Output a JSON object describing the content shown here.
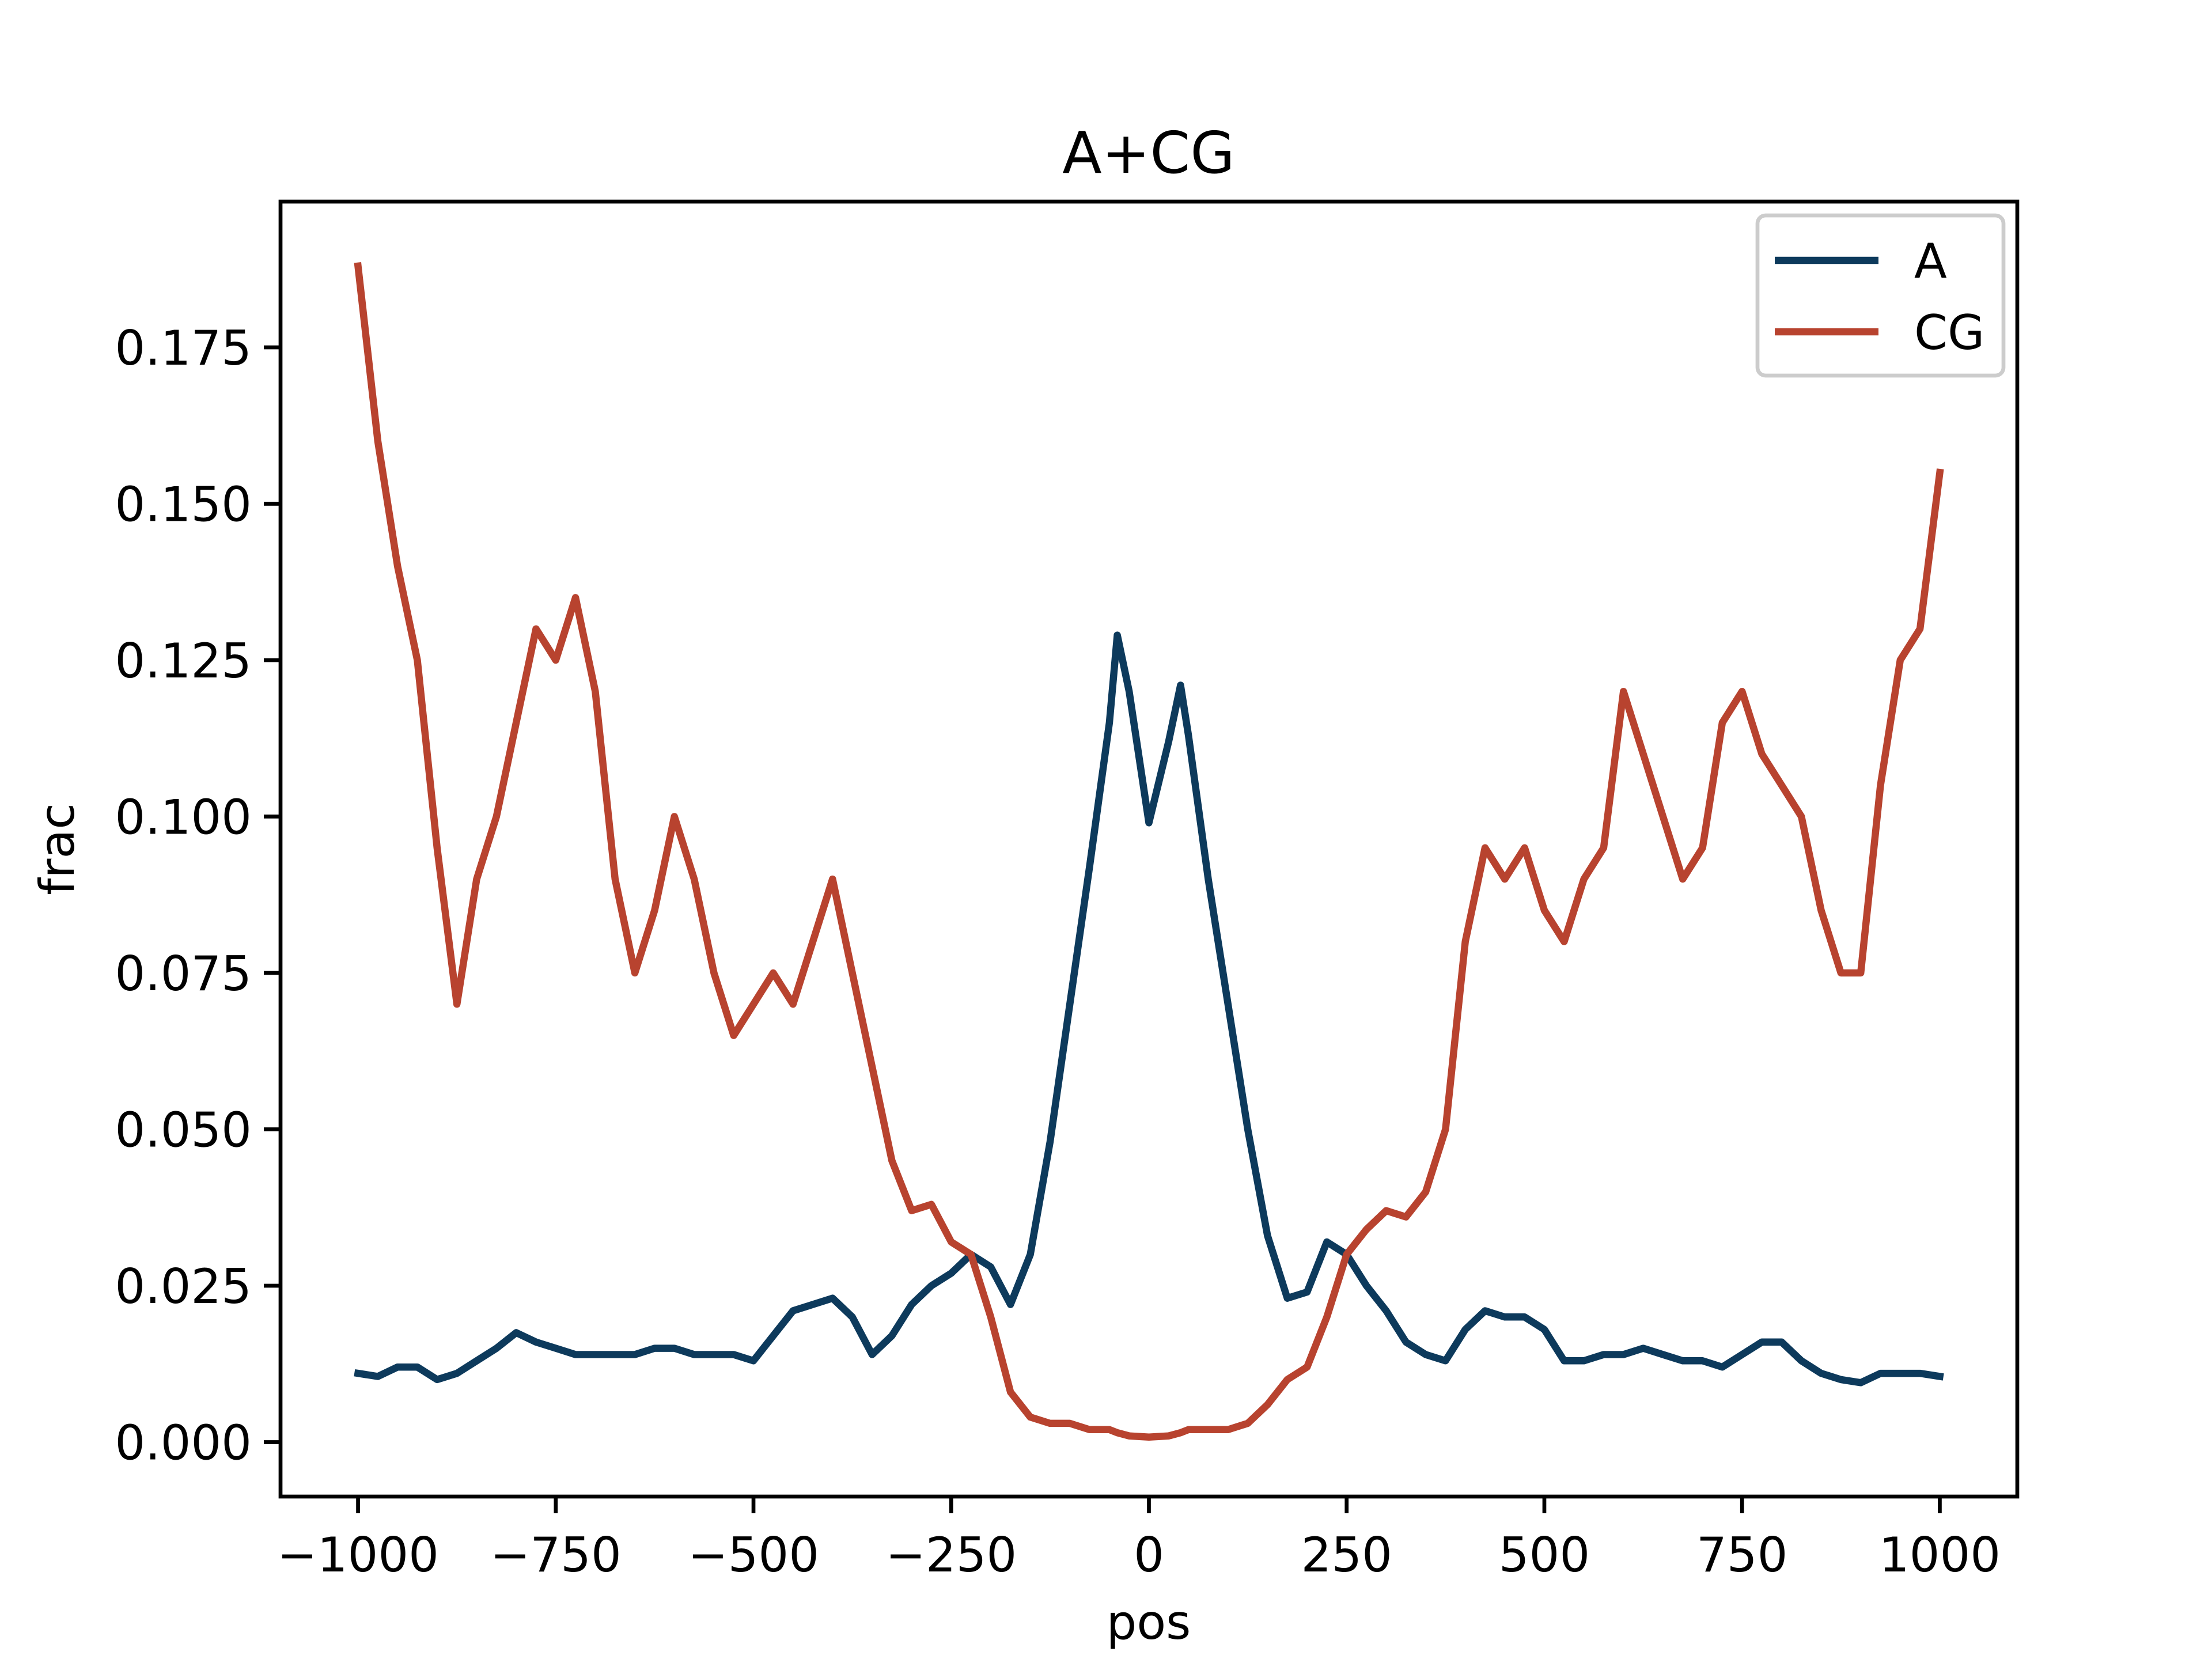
{
  "chart_data": {
    "type": "line",
    "title": "A+CG",
    "x_label": "pos",
    "y_label": "frac",
    "x": [
      -1000,
      -975,
      -950,
      -925,
      -900,
      -875,
      -850,
      -825,
      -800,
      -775,
      -750,
      -725,
      -700,
      -675,
      -650,
      -625,
      -600,
      -575,
      -550,
      -525,
      -500,
      -475,
      -450,
      -425,
      -400,
      -375,
      -350,
      -325,
      -300,
      -275,
      -250,
      -225,
      -200,
      -175,
      -150,
      -125,
      -100,
      -75,
      -50,
      -40,
      -25,
      0,
      25,
      40,
      50,
      75,
      100,
      125,
      150,
      175,
      200,
      225,
      250,
      275,
      300,
      325,
      350,
      375,
      400,
      425,
      450,
      475,
      500,
      525,
      550,
      575,
      600,
      625,
      650,
      675,
      700,
      725,
      750,
      775,
      800,
      825,
      850,
      875,
      900,
      925,
      950,
      975,
      1000
    ],
    "series": [
      {
        "name": "A",
        "color": "#0d3a5c",
        "values": [
          0.011,
          0.0105,
          0.012,
          0.012,
          0.01,
          0.011,
          0.013,
          0.015,
          0.0175,
          0.016,
          0.015,
          0.014,
          0.014,
          0.014,
          0.014,
          0.015,
          0.015,
          0.014,
          0.014,
          0.014,
          0.013,
          0.017,
          0.021,
          0.022,
          0.023,
          0.02,
          0.014,
          0.017,
          0.022,
          0.025,
          0.027,
          0.03,
          0.028,
          0.022,
          0.03,
          0.048,
          0.07,
          0.092,
          0.115,
          0.129,
          0.12,
          0.099,
          0.112,
          0.121,
          0.113,
          0.09,
          0.07,
          0.05,
          0.033,
          0.023,
          0.024,
          0.032,
          0.03,
          0.025,
          0.021,
          0.016,
          0.014,
          0.013,
          0.018,
          0.021,
          0.02,
          0.02,
          0.018,
          0.013,
          0.013,
          0.014,
          0.014,
          0.015,
          0.014,
          0.013,
          0.013,
          0.012,
          0.014,
          0.016,
          0.016,
          0.013,
          0.011,
          0.01,
          0.0095,
          0.011,
          0.011,
          0.011,
          0.0105
        ]
      },
      {
        "name": "CG",
        "color": "#b8432f",
        "values": [
          0.188,
          0.16,
          0.14,
          0.125,
          0.095,
          0.07,
          0.09,
          0.1,
          0.115,
          0.13,
          0.125,
          0.135,
          0.12,
          0.09,
          0.075,
          0.085,
          0.1,
          0.09,
          0.075,
          0.065,
          0.07,
          0.075,
          0.07,
          0.08,
          0.09,
          0.075,
          0.06,
          0.045,
          0.037,
          0.038,
          0.032,
          0.03,
          0.02,
          0.008,
          0.004,
          0.003,
          0.003,
          0.002,
          0.002,
          0.0015,
          0.001,
          0.0008,
          0.001,
          0.0015,
          0.002,
          0.002,
          0.002,
          0.003,
          0.006,
          0.01,
          0.012,
          0.02,
          0.03,
          0.034,
          0.037,
          0.036,
          0.04,
          0.05,
          0.08,
          0.095,
          0.09,
          0.095,
          0.085,
          0.08,
          0.09,
          0.095,
          0.12,
          0.11,
          0.1,
          0.09,
          0.095,
          0.115,
          0.12,
          0.11,
          0.105,
          0.1,
          0.085,
          0.075,
          0.075,
          0.105,
          0.125,
          0.13,
          0.155
        ]
      }
    ],
    "xlim": [
      -1098,
      1098
    ],
    "ylim": [
      -0.0087,
      0.1983
    ],
    "xticks": [
      {
        "value": -1000,
        "label": "−1000"
      },
      {
        "value": -750,
        "label": "−750"
      },
      {
        "value": -500,
        "label": "−500"
      },
      {
        "value": -250,
        "label": "−250"
      },
      0,
      250,
      500,
      750,
      1000
    ],
    "yticks": [
      {
        "value": 0,
        "label": "0.000"
      },
      0.025,
      {
        "value": 0.05,
        "label": "0.050"
      },
      0.075,
      {
        "value": 0.1,
        "label": "0.100"
      },
      0.125,
      {
        "value": 0.15,
        "label": "0.150"
      },
      0.175
    ],
    "legend": "upper right",
    "grid": false
  }
}
